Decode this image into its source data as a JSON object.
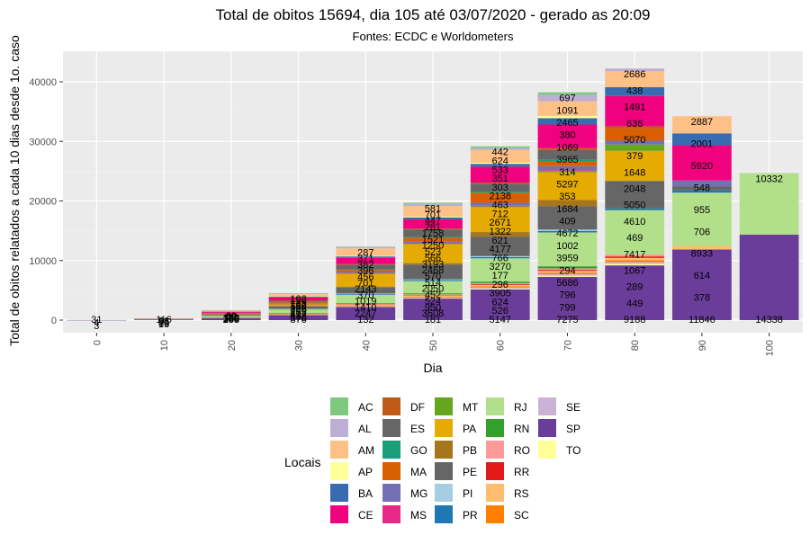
{
  "chart_data": {
    "type": "bar",
    "stacked": true,
    "title": "Total de obitos 15694, dia 105 até 03/07/2020 - gerado as 20:09",
    "subtitle": "Fontes: ECDC e Worldometers",
    "xlabel": "Dia",
    "ylabel": "Total de obitos relatados a cada 10 dias desde 1o. caso",
    "legend_title": "Locais",
    "legend_position": "bottom",
    "grid": true,
    "categories": [
      "0",
      "10",
      "20",
      "30",
      "40",
      "50",
      "60",
      "70",
      "80",
      "90",
      "100"
    ],
    "x_ticks": [
      "0",
      "10",
      "20",
      "30",
      "40",
      "50",
      "60",
      "70",
      "80",
      "90",
      "100"
    ],
    "y_ticks": [
      "0",
      "10000",
      "20000",
      "30000",
      "40000"
    ],
    "ylim": [
      0,
      45000
    ],
    "legend": [
      "AC",
      "AL",
      "AM",
      "AP",
      "BA",
      "CE",
      "DF",
      "ES",
      "GO",
      "MA",
      "MG",
      "MS",
      "MT",
      "PA",
      "PB",
      "PE",
      "PI",
      "PR",
      "RJ",
      "RN",
      "RO",
      "RR",
      "RS",
      "SC",
      "SE",
      "SP",
      "TO"
    ],
    "colors": {
      "AC": "#7fc97f",
      "AL": "#beaed4",
      "AM": "#fdc086",
      "AP": "#ffff99",
      "BA": "#386cb0",
      "CE": "#f0027f",
      "DF": "#bf5b17",
      "ES": "#666666",
      "GO": "#1b9e77",
      "MA": "#d95f02",
      "MG": "#7570b3",
      "MS": "#e7298a",
      "MT": "#66a61e",
      "PA": "#e6ab02",
      "PB": "#a6761d",
      "PE": "#666666",
      "PI": "#a6cee3",
      "PR": "#1f78b4",
      "RJ": "#b2df8a",
      "RN": "#33a02c",
      "RO": "#fb9a99",
      "RR": "#e31a1c",
      "RS": "#fdbf6f",
      "SC": "#ff7f00",
      "SE": "#cab2d6",
      "SP": "#6a3d9a",
      "TO": "#ffff99"
    },
    "stack_order": [
      "SP",
      "TO",
      "SE",
      "SC",
      "RS",
      "RR",
      "RO",
      "RN",
      "RJ",
      "PR",
      "PI",
      "PE",
      "PB",
      "PA",
      "MT",
      "MS",
      "MG",
      "MA",
      "GO",
      "ES",
      "DF",
      "CE",
      "BA",
      "AP",
      "AM",
      "AL",
      "AC"
    ],
    "series": [
      {
        "name": "SP",
        "values": [
          10,
          100,
          350,
          876,
          2247,
          3608,
          5147,
          7275,
          9188,
          11846,
          14338
        ]
      },
      {
        "name": "TO",
        "values": [
          0,
          0,
          5,
          10,
          30,
          60,
          120,
          180,
          250,
          0,
          0
        ]
      },
      {
        "name": "SE",
        "values": [
          0,
          0,
          10,
          30,
          80,
          130,
          200,
          250,
          300,
          0,
          0
        ]
      },
      {
        "name": "SC",
        "values": [
          0,
          5,
          40,
          80,
          120,
          150,
          200,
          250,
          300,
          0,
          0
        ]
      },
      {
        "name": "RS",
        "values": [
          0,
          10,
          50,
          90,
          150,
          200,
          250,
          300,
          400,
          614,
          0
        ]
      },
      {
        "name": "RR",
        "values": [
          0,
          0,
          5,
          20,
          40,
          70,
          120,
          180,
          250,
          0,
          0
        ]
      },
      {
        "name": "RO",
        "values": [
          0,
          0,
          10,
          30,
          70,
          110,
          180,
          250,
          350,
          0,
          0
        ]
      },
      {
        "name": "RN",
        "values": [
          0,
          5,
          30,
          70,
          120,
          180,
          250,
          350,
          0,
          0,
          0
        ]
      },
      {
        "name": "RJ",
        "values": [
          0,
          20,
          200,
          570,
          1410,
          2050,
          3905,
          5686,
          7417,
          8933,
          10332
        ]
      },
      {
        "name": "PR",
        "values": [
          0,
          5,
          40,
          80,
          120,
          160,
          200,
          250,
          300,
          378,
          0
        ]
      },
      {
        "name": "PI",
        "values": [
          0,
          0,
          20,
          40,
          80,
          130,
          177,
          220,
          0,
          0,
          0
        ]
      },
      {
        "name": "PE",
        "values": [
          0,
          20,
          150,
          433,
          1019,
          2468,
          3270,
          3959,
          4610,
          706,
          0
        ]
      },
      {
        "name": "PB",
        "values": [
          0,
          0,
          20,
          60,
          150,
          250,
          766,
          1002,
          0,
          0,
          0
        ]
      },
      {
        "name": "PA",
        "values": [
          0,
          10,
          100,
          300,
          2143,
          3193,
          4177,
          4672,
          5050,
          0,
          0
        ]
      },
      {
        "name": "MT",
        "values": [
          0,
          0,
          10,
          30,
          60,
          90,
          150,
          200,
          1067,
          0,
          0
        ]
      },
      {
        "name": "MS",
        "values": [
          0,
          0,
          5,
          15,
          30,
          50,
          80,
          130,
          0,
          0,
          0
        ]
      },
      {
        "name": "MG",
        "values": [
          0,
          10,
          60,
          120,
          210,
          330,
          500,
          700,
          636,
          955,
          0
        ]
      },
      {
        "name": "MA",
        "values": [
          0,
          5,
          50,
          150,
          350,
          600,
          1684,
          800,
          2048,
          0,
          0
        ]
      },
      {
        "name": "GO",
        "values": [
          0,
          5,
          20,
          50,
          90,
          140,
          200,
          250,
          0,
          0,
          0
        ]
      },
      {
        "name": "ES",
        "values": [
          0,
          10,
          50,
          200,
          800,
          1258,
          1322,
          1648,
          0,
          0,
          0
        ]
      },
      {
        "name": "DF",
        "values": [
          0,
          5,
          20,
          50,
          100,
          150,
          200,
          314,
          379,
          0,
          0
        ]
      },
      {
        "name": "CE",
        "values": [
          0,
          20,
          170,
          480,
          1020,
          1521,
          2671,
          3965,
          5070,
          5920,
          0
        ]
      },
      {
        "name": "BA",
        "values": [
          0,
          10,
          60,
          150,
          250,
          340,
          463,
          1069,
          1491,
          2001,
          0
        ]
      },
      {
        "name": "AP",
        "values": [
          0,
          0,
          10,
          40,
          100,
          150,
          200,
          380,
          0,
          0,
          0
        ]
      },
      {
        "name": "AM",
        "values": [
          0,
          20,
          150,
          417,
          1253,
          1758,
          2138,
          2465,
          2686,
          2887,
          0
        ]
      },
      {
        "name": "AL",
        "values": [
          0,
          5,
          20,
          80,
          180,
          350,
          303,
          1091,
          438,
          0,
          0
        ]
      },
      {
        "name": "AC",
        "values": [
          0,
          0,
          10,
          40,
          100,
          200,
          300,
          400,
          0,
          0,
          0
        ]
      }
    ],
    "labels": [
      [
        "31",
        "4",
        "3"
      ],
      [
        "116",
        "91",
        "55",
        "30",
        "15"
      ],
      [
        "283",
        "185",
        "150",
        "100",
        "95",
        "80",
        "62"
      ],
      [
        "876",
        "570",
        "433",
        "417",
        "263",
        "240",
        "202",
        "180",
        "162",
        "133",
        "120",
        "102"
      ],
      [
        "132",
        "2247",
        "1410",
        "1019",
        "370",
        "2143",
        "701",
        "456",
        "396",
        "382",
        "371",
        "287"
      ],
      [
        "181",
        "3608",
        "950",
        "524",
        "452",
        "2050",
        "514",
        "570",
        "2468",
        "3193",
        "566",
        "523",
        "1250",
        "1521",
        "1758",
        "281",
        "447",
        "701",
        "581"
      ],
      [
        "5147",
        "526",
        "624",
        "3905",
        "296",
        "177",
        "3270",
        "766",
        "4177",
        "621",
        "1322",
        "2671",
        "712",
        "463",
        "2138",
        "303",
        "351",
        "533",
        "624",
        "442"
      ],
      [
        "7275",
        "799",
        "796",
        "5686",
        "294",
        "3959",
        "1002",
        "4672",
        "409",
        "1684",
        "353",
        "5297",
        "314",
        "3965",
        "1069",
        "380",
        "2465",
        "1091",
        "697"
      ],
      [
        "9188",
        "449",
        "289",
        "1067",
        "7417",
        "469",
        "4610",
        "5050",
        "2048",
        "1648",
        "379",
        "5070",
        "636",
        "1491",
        "438",
        "2686"
      ],
      [
        "11846",
        "378",
        "614",
        "8933",
        "706",
        "955",
        "548",
        "5920",
        "2001",
        "2887"
      ],
      [
        "14338",
        "10332"
      ]
    ]
  }
}
